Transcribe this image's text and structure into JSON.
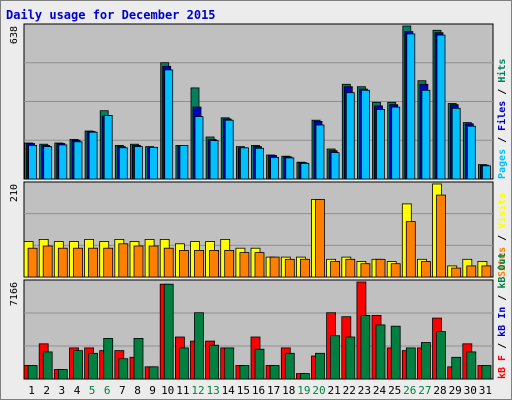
{
  "title": "Daily usage for December 2015",
  "colors": {
    "background": "#ececec",
    "panel": "#c0c0c0",
    "grid": "#8f8f8f",
    "hits": "#00805c",
    "files": "#0000c0",
    "pages": "#00c0ff",
    "visits": "#ffff00",
    "sites": "#ff8000",
    "kb_in": "#008040",
    "kb_out": "#ff0000",
    "xlabel_weekday": "#000000",
    "xlabel_weekend": "#008040",
    "title": "#0000cc"
  },
  "chart_data": [
    {
      "type": "bar",
      "panel": "hits-files-pages",
      "ymax_label": "638",
      "legend": [
        {
          "name": "Pages",
          "text": "Pages",
          "color_key": "pages"
        },
        {
          "name": "Files",
          "text": "Files",
          "color_key": "files"
        },
        {
          "name": "Hits",
          "text": "Hits",
          "color_key": "hits"
        }
      ],
      "ylim": [
        0,
        638
      ],
      "categories": [
        "1",
        "2",
        "3",
        "4",
        "5",
        "6",
        "7",
        "8",
        "9",
        "10",
        "11",
        "12",
        "13",
        "14",
        "15",
        "16",
        "17",
        "18",
        "19",
        "20",
        "21",
        "22",
        "23",
        "24",
        "25",
        "26",
        "27",
        "28",
        "29",
        "30",
        "31"
      ],
      "weekend": [
        "5",
        "6",
        "12",
        "13",
        "19",
        "20",
        "26",
        "27"
      ],
      "series": [
        {
          "name": "Hits",
          "color_key": "hits",
          "values": [
            150,
            145,
            150,
            165,
            200,
            285,
            140,
            145,
            135,
            485,
            140,
            380,
            175,
            255,
            135,
            140,
            100,
            95,
            70,
            245,
            125,
            395,
            385,
            320,
            320,
            640,
            410,
            620,
            315,
            235,
            60
          ]
        },
        {
          "name": "Files",
          "color_key": "files",
          "values": [
            148,
            140,
            148,
            162,
            198,
            262,
            135,
            140,
            130,
            470,
            135,
            300,
            165,
            250,
            130,
            135,
            98,
            92,
            68,
            240,
            118,
            385,
            375,
            305,
            310,
            615,
            395,
            610,
            310,
            230,
            58
          ]
        },
        {
          "name": "Pages",
          "color_key": "pages",
          "values": [
            140,
            135,
            142,
            155,
            195,
            265,
            130,
            135,
            132,
            455,
            140,
            260,
            160,
            245,
            130,
            128,
            90,
            88,
            65,
            225,
            110,
            360,
            370,
            290,
            300,
            605,
            370,
            600,
            295,
            220,
            55
          ]
        }
      ]
    },
    {
      "type": "bar",
      "panel": "visits-sites",
      "ymax_label": "210",
      "legend": [
        {
          "name": "Sites",
          "text": "Sites",
          "color_key": "sites"
        },
        {
          "name": "Visits",
          "text": "Visits",
          "color_key": "visits"
        }
      ],
      "ylim": [
        0,
        210
      ],
      "categories": [
        "1",
        "2",
        "3",
        "4",
        "5",
        "6",
        "7",
        "8",
        "9",
        "10",
        "11",
        "12",
        "13",
        "14",
        "15",
        "16",
        "17",
        "18",
        "19",
        "20",
        "21",
        "22",
        "23",
        "24",
        "25",
        "26",
        "27",
        "28",
        "29",
        "30",
        "31"
      ],
      "series": [
        {
          "name": "Visits",
          "color_key": "visits",
          "values": [
            80,
            85,
            80,
            80,
            85,
            80,
            85,
            80,
            85,
            85,
            75,
            80,
            80,
            85,
            65,
            65,
            45,
            45,
            45,
            175,
            40,
            45,
            35,
            40,
            35,
            165,
            40,
            210,
            25,
            40,
            35
          ]
        },
        {
          "name": "Sites",
          "color_key": "sites",
          "values": [
            65,
            70,
            65,
            65,
            65,
            65,
            75,
            70,
            70,
            65,
            60,
            60,
            60,
            60,
            55,
            55,
            45,
            40,
            40,
            175,
            35,
            40,
            30,
            40,
            30,
            125,
            35,
            185,
            20,
            25,
            25
          ]
        }
      ]
    },
    {
      "type": "bar",
      "panel": "kbin-kbout",
      "ymax_label": "7166",
      "legend": [
        {
          "name": "kB F",
          "text": "kB F",
          "color_key": "kb_out"
        },
        {
          "name": "kB In",
          "text": "kB In",
          "color_key": "files"
        },
        {
          "name": "kB Out",
          "text": "kB Out",
          "color_key": "kb_in"
        }
      ],
      "ylim": [
        0,
        7166
      ],
      "categories": [
        "1",
        "2",
        "3",
        "4",
        "5",
        "6",
        "7",
        "8",
        "9",
        "10",
        "11",
        "12",
        "13",
        "14",
        "15",
        "16",
        "17",
        "18",
        "19",
        "20",
        "21",
        "22",
        "23",
        "24",
        "25",
        "26",
        "27",
        "28",
        "29",
        "30",
        "31"
      ],
      "series": [
        {
          "name": "kB F",
          "color_key": "kb_out",
          "values": [
            1000,
            2600,
            700,
            2300,
            2300,
            2100,
            2100,
            1600,
            900,
            7000,
            3100,
            2800,
            2800,
            2300,
            1000,
            3100,
            1000,
            2300,
            400,
            1700,
            4900,
            4600,
            7300,
            4700,
            2300,
            2100,
            2300,
            4500,
            900,
            2600,
            1000
          ]
        },
        {
          "name": "kB Out",
          "color_key": "kb_in",
          "values": [
            1000,
            2000,
            700,
            2100,
            1900,
            3000,
            1500,
            3000,
            900,
            7000,
            2300,
            4900,
            2500,
            2300,
            1000,
            2200,
            1000,
            1900,
            400,
            1900,
            3200,
            3100,
            4700,
            4000,
            3900,
            2300,
            2700,
            3500,
            1600,
            2000,
            1000
          ]
        }
      ]
    }
  ]
}
